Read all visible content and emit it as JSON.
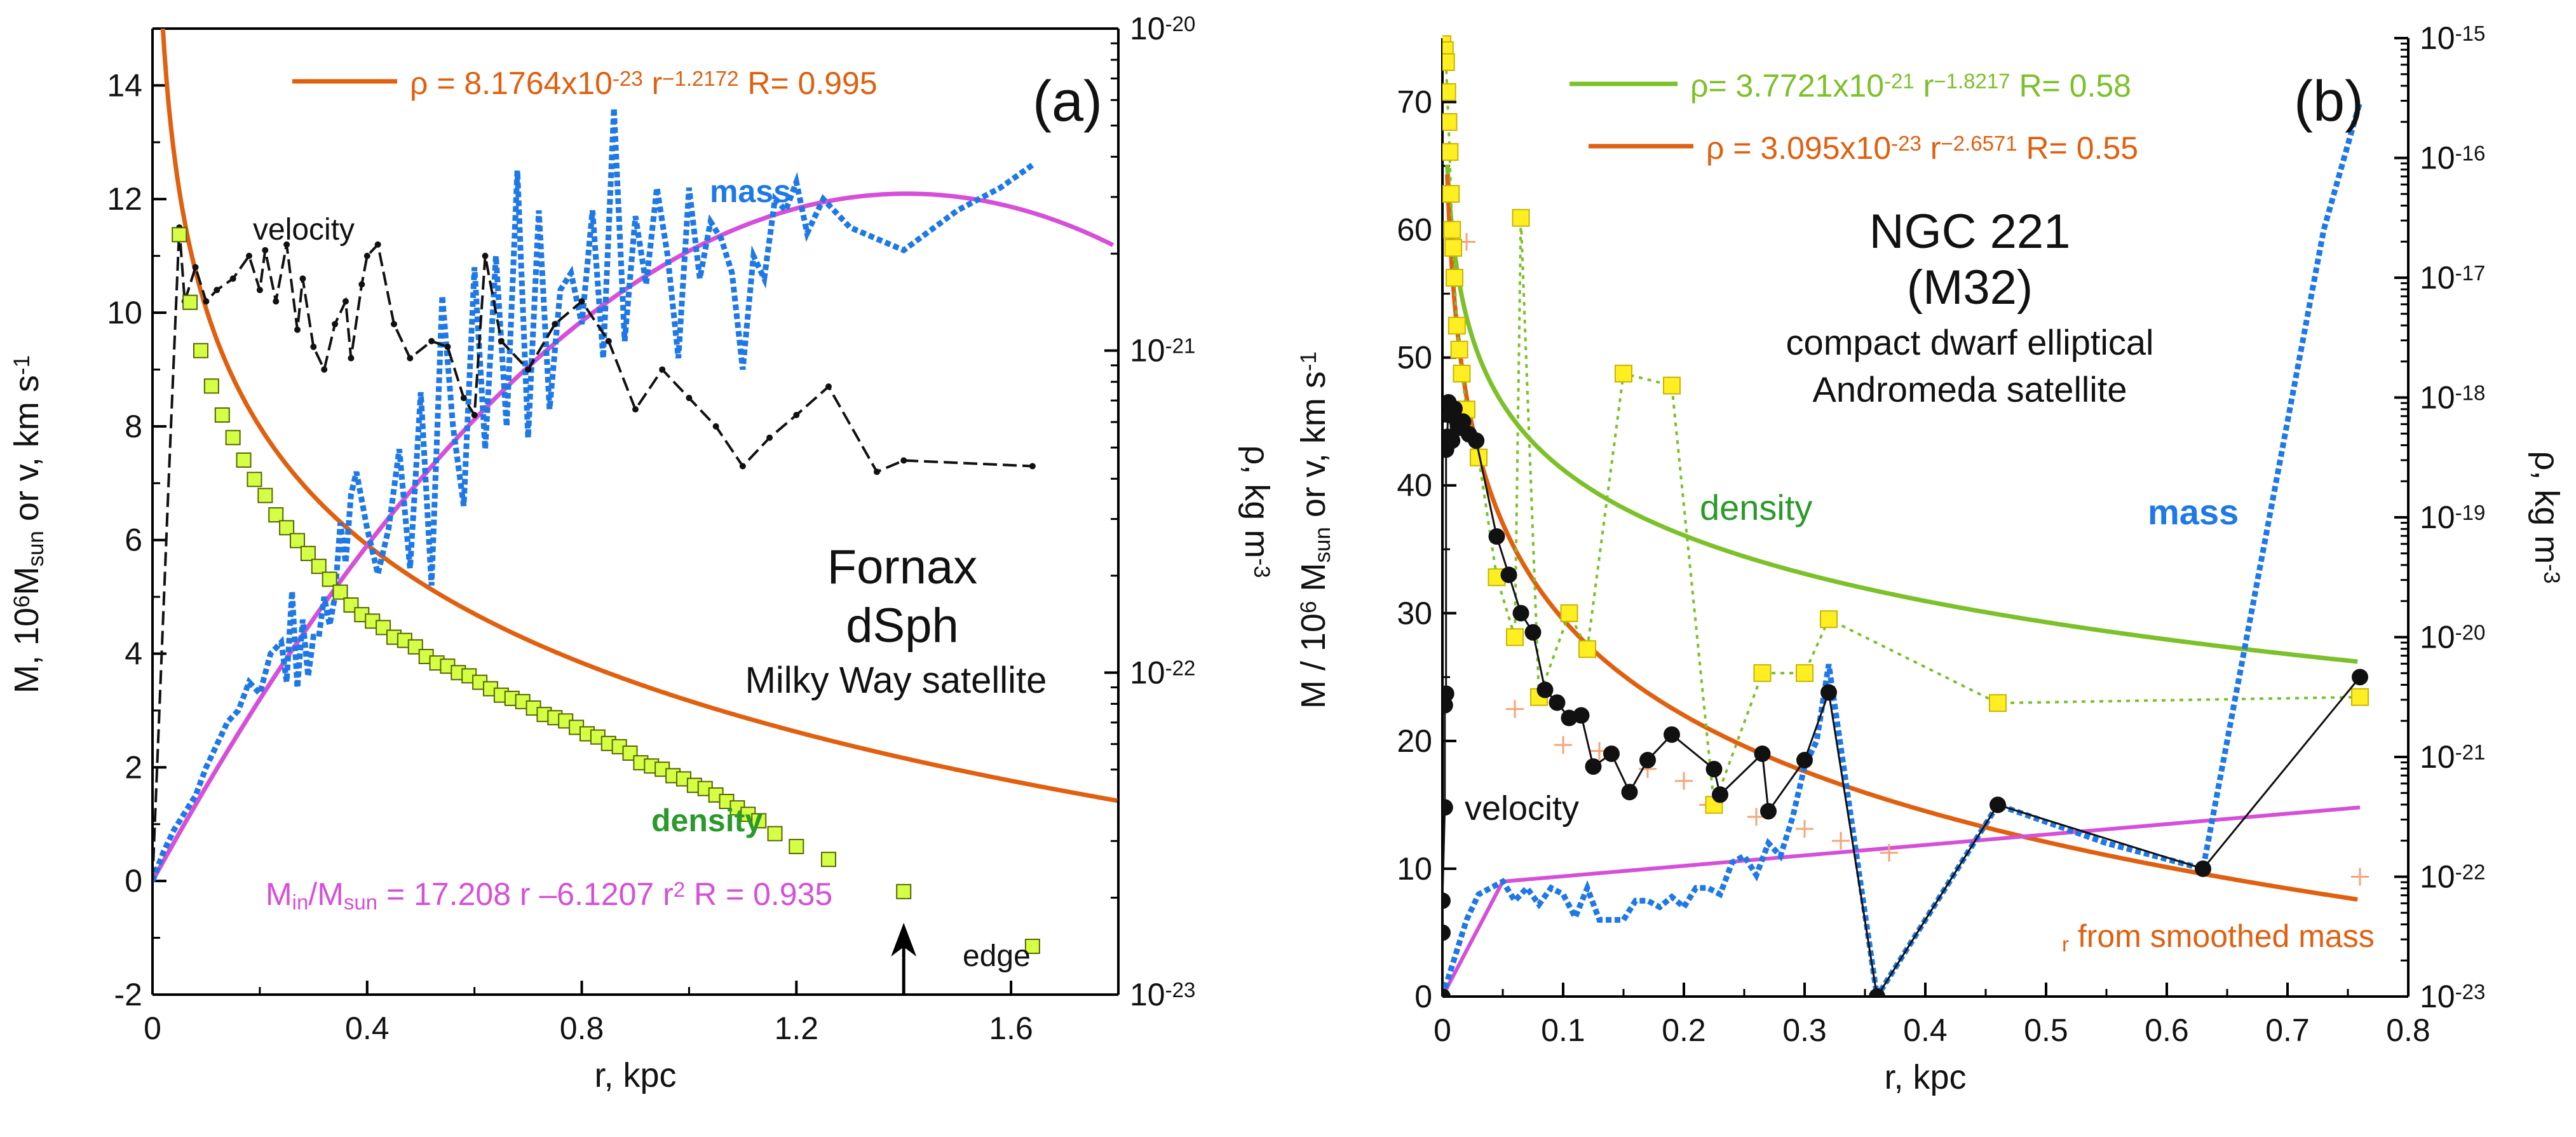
{
  "chart_data": [
    {
      "id": "a",
      "type": "line",
      "panel_label": "(a)",
      "xlabel": "r, kpc",
      "ylabel_parts": [
        "M, 10",
        "6",
        "M",
        "sun",
        "or",
        "v, km s",
        "-1"
      ],
      "y2label_parts": [
        "ρ, kg m",
        "-3"
      ],
      "xlim": [
        0,
        1.8
      ],
      "ylim": [
        -2,
        15
      ],
      "y2lim_log10": [
        -23,
        -20
      ],
      "xticks": [
        0,
        0.4,
        0.8,
        1.2,
        1.6
      ],
      "xtick_labels": [
        "0",
        "0.4",
        "0.8",
        "1.2",
        "1.6"
      ],
      "yticks": [
        -2,
        0,
        2,
        4,
        6,
        8,
        10,
        12,
        14
      ],
      "ytick_labels": [
        "-2",
        "0",
        "2",
        "4",
        "6",
        "8",
        "10",
        "12",
        "14"
      ],
      "y2ticks": [
        -23,
        -22,
        -21,
        -20
      ],
      "y2tick_labels": [
        "10",
        "10",
        "10",
        "10"
      ],
      "y2tick_exps": [
        "-23",
        "-22",
        "-21",
        "-20"
      ],
      "titles": [
        "Fornax",
        "dSph",
        "Milky Way satellite"
      ],
      "colors": {
        "density_fit": "#e06010",
        "density_pts": "#d4ff44",
        "mass": "#1e78e6",
        "mass_fit": "#d64fd8",
        "velocity": "#111111",
        "density_text": "#2a9a2a"
      },
      "annotations": {
        "rho_fit": {
          "pre": "ρ = 8.1764x10",
          "exp": "-23",
          "mid": " r",
          "exp2": "−1.2172",
          "post": "  R= 0.995"
        },
        "mass_fit": {
          "pre": "M",
          "sub": "in",
          "mid": "/M",
          "sub2": "sun",
          "post": " = 17.208 r –6.1207 r",
          "sup": "2",
          "tail": "   R = 0.935"
        },
        "mass_label": "mass",
        "velocity_label": "velocity",
        "density_label": "density",
        "edge_label": "edge",
        "edge_x": 1.4
      },
      "series": [
        {
          "name": "density fit",
          "kind": "fit",
          "formula": {
            "a": 8.1764e-23,
            "b": -1.2172
          }
        },
        {
          "name": "mass fit",
          "kind": "fit",
          "formula": {
            "c1": 17.208,
            "c2": -6.1207
          }
        },
        {
          "name": "mass",
          "style": "dotted",
          "x": [
            0,
            0.02,
            0.04,
            0.06,
            0.08,
            0.1,
            0.12,
            0.14,
            0.16,
            0.18,
            0.2,
            0.22,
            0.24,
            0.25,
            0.26,
            0.27,
            0.28,
            0.29,
            0.3,
            0.31,
            0.32,
            0.33,
            0.34,
            0.35,
            0.36,
            0.37,
            0.38,
            0.4,
            0.42,
            0.44,
            0.46,
            0.48,
            0.5,
            0.52,
            0.54,
            0.56,
            0.58,
            0.6,
            0.62,
            0.64,
            0.66,
            0.68,
            0.7,
            0.72,
            0.74,
            0.76,
            0.78,
            0.8,
            0.82,
            0.84,
            0.86,
            0.88,
            0.9,
            0.92,
            0.94,
            0.96,
            0.98,
            1.0,
            1.02,
            1.04,
            1.06,
            1.08,
            1.1,
            1.12,
            1.14,
            1.16,
            1.18,
            1.2,
            1.22,
            1.25,
            1.3,
            1.4,
            1.5,
            1.58,
            1.64
          ],
          "y": [
            0,
            0.5,
            0.9,
            1.2,
            1.5,
            2.0,
            2.4,
            2.8,
            3.0,
            3.5,
            3.3,
            4.0,
            4.2,
            3.5,
            5.1,
            3.4,
            4.6,
            3.6,
            4.3,
            4.3,
            5.0,
            4.5,
            5.0,
            6.3,
            5.6,
            6.8,
            7.2,
            6.2,
            5.4,
            6.2,
            7.6,
            5.5,
            8.6,
            5.2,
            10.3,
            8.0,
            6.6,
            10.8,
            7.6,
            11.0,
            8.0,
            12.5,
            7.8,
            11.8,
            8.3,
            10.4,
            10.7,
            9.8,
            11.8,
            9.2,
            13.6,
            9.5,
            11.7,
            10.5,
            12.2,
            11.0,
            9.2,
            12.2,
            10.6,
            11.6,
            11.3,
            10.7,
            9.0,
            11.0,
            10.6,
            12.0,
            11.8,
            12.3,
            11.4,
            12.0,
            11.5,
            11.1,
            11.8,
            12.2,
            12.6
          ]
        },
        {
          "name": "velocity",
          "style": "dashed",
          "x": [
            0,
            0.03,
            0.05,
            0.06,
            0.08,
            0.1,
            0.12,
            0.15,
            0.18,
            0.2,
            0.21,
            0.23,
            0.25,
            0.27,
            0.28,
            0.3,
            0.32,
            0.34,
            0.36,
            0.37,
            0.39,
            0.4,
            0.42,
            0.45,
            0.48,
            0.52,
            0.55,
            0.58,
            0.6,
            0.62,
            0.65,
            0.7,
            0.75,
            0.8,
            0.85,
            0.9,
            0.95,
            1.0,
            1.05,
            1.1,
            1.15,
            1.2,
            1.26,
            1.35,
            1.4,
            1.64
          ],
          "y": [
            0,
            7.0,
            11.5,
            10.2,
            10.8,
            10.2,
            10.4,
            10.6,
            11.0,
            10.4,
            11.1,
            10.2,
            11.2,
            9.7,
            10.6,
            9.4,
            9.0,
            9.8,
            10.2,
            9.2,
            10.5,
            11.0,
            11.2,
            9.8,
            9.2,
            9.5,
            9.4,
            8.5,
            8.2,
            11.0,
            9.5,
            9.0,
            9.8,
            10.2,
            9.5,
            8.3,
            9.0,
            8.5,
            8.0,
            7.3,
            7.8,
            8.2,
            8.7,
            7.2,
            7.4,
            7.3
          ]
        },
        {
          "name": "density points",
          "style": "squares",
          "x": [
            0.05,
            0.07,
            0.09,
            0.11,
            0.13,
            0.15,
            0.17,
            0.19,
            0.21,
            0.23,
            0.25,
            0.27,
            0.29,
            0.31,
            0.33,
            0.35,
            0.37,
            0.39,
            0.41,
            0.43,
            0.45,
            0.47,
            0.49,
            0.51,
            0.53,
            0.55,
            0.57,
            0.59,
            0.61,
            0.63,
            0.65,
            0.67,
            0.69,
            0.71,
            0.73,
            0.75,
            0.77,
            0.79,
            0.81,
            0.83,
            0.85,
            0.87,
            0.89,
            0.91,
            0.93,
            0.95,
            0.97,
            0.99,
            1.01,
            1.03,
            1.05,
            1.07,
            1.09,
            1.11,
            1.13,
            1.16,
            1.2,
            1.26,
            1.4,
            1.64
          ],
          "y_log10": [
            -20.64,
            -20.85,
            -21.0,
            -21.11,
            -21.2,
            -21.27,
            -21.34,
            -21.4,
            -21.45,
            -21.51,
            -21.55,
            -21.59,
            -21.63,
            -21.67,
            -21.71,
            -21.75,
            -21.79,
            -21.82,
            -21.84,
            -21.86,
            -21.89,
            -21.9,
            -21.92,
            -21.95,
            -21.97,
            -21.98,
            -22.0,
            -22.01,
            -22.03,
            -22.05,
            -22.07,
            -22.08,
            -22.09,
            -22.11,
            -22.13,
            -22.14,
            -22.15,
            -22.17,
            -22.19,
            -22.2,
            -22.22,
            -22.23,
            -22.25,
            -22.28,
            -22.29,
            -22.3,
            -22.32,
            -22.33,
            -22.35,
            -22.36,
            -22.38,
            -22.4,
            -22.42,
            -22.44,
            -22.46,
            -22.5,
            -22.54,
            -22.58,
            -22.68,
            -22.85
          ]
        }
      ]
    },
    {
      "id": "b",
      "type": "line",
      "panel_label": "(b)",
      "xlabel": "r, kpc",
      "ylabel_parts": [
        "M / 10",
        "6",
        " M",
        "sun",
        "or",
        "v, km s",
        "-1"
      ],
      "y2label_parts": [
        "ρ, kg m",
        "-3"
      ],
      "xlim": [
        0,
        0.8
      ],
      "ylim": [
        0,
        75
      ],
      "y2lim_log10": [
        -23,
        -15
      ],
      "xticks": [
        0,
        0.1,
        0.2,
        0.3,
        0.4,
        0.5,
        0.6,
        0.7,
        0.8
      ],
      "xtick_labels": [
        "0",
        "0.1",
        "0.2",
        "0.3",
        "0.4",
        "0.5",
        "0.6",
        "0.7",
        "0.8"
      ],
      "yticks": [
        0,
        10,
        20,
        30,
        40,
        50,
        60,
        70
      ],
      "ytick_labels": [
        "0",
        "10",
        "20",
        "30",
        "40",
        "50",
        "60",
        "70"
      ],
      "y2ticks": [
        -23,
        -22,
        -21,
        -20,
        -19,
        -18,
        -17,
        -16,
        -15
      ],
      "y2tick_labels": [
        "10",
        "10",
        "10",
        "10",
        "10",
        "10",
        "10",
        "10",
        "10"
      ],
      "y2tick_exps": [
        "-23",
        "-22",
        "-21",
        "-20",
        "-19",
        "-18",
        "-17",
        "-16",
        "-15"
      ],
      "titles": [
        "NGC 221",
        "(M32)",
        "compact dwarf elliptical",
        "Andromeda satellite"
      ],
      "colors": {
        "density_fit_green": "#7cc02a",
        "density_fit_orange": "#e06010",
        "density_pts": "#ffee22",
        "mass": "#1e78e6",
        "mass_fit": "#d64fd8",
        "velocity": "#111111",
        "plus": "#f4a57a",
        "density_text": "#2a9a2a"
      },
      "annotations": {
        "rho_fit_green": {
          "pre": "ρ= 3.7721x10",
          "exp": "-21",
          "mid": " r",
          "exp2": "−1.8217",
          "post": "   R= 0.58"
        },
        "rho_fit_orange": {
          "pre": "ρ = 3.095x10",
          "exp": "-23",
          "mid": " r",
          "exp2": "−2.6571",
          "post": "  R= 0.55"
        },
        "mass_label": "mass",
        "velocity_label": "velocity",
        "density_label": "density",
        "smoothed_label": "from smoothed mass",
        "smoothed_sub": "r"
      },
      "series": [
        {
          "name": "density fit green",
          "kind": "fit",
          "formula": {
            "a": 3.7721e-21,
            "b": -1.8217
          }
        },
        {
          "name": "density fit orange",
          "kind": "fit",
          "formula": {
            "a": 3.095e-23,
            "b": -2.6571
          }
        },
        {
          "name": "mass fit",
          "kind": "line",
          "x": [
            0,
            0.05,
            0.76
          ],
          "y": [
            0,
            9.0,
            14.8
          ]
        },
        {
          "name": "mass",
          "style": "dotted",
          "x": [
            0,
            0.01,
            0.02,
            0.03,
            0.04,
            0.05,
            0.06,
            0.07,
            0.08,
            0.09,
            0.1,
            0.11,
            0.12,
            0.13,
            0.14,
            0.15,
            0.16,
            0.17,
            0.18,
            0.19,
            0.2,
            0.21,
            0.22,
            0.23,
            0.24,
            0.25,
            0.26,
            0.27,
            0.28,
            0.29,
            0.3,
            0.31,
            0.32,
            0.36,
            0.4,
            0.46,
            0.55,
            0.63,
            0.66,
            0.7,
            0.73,
            0.76
          ],
          "y": [
            0,
            3.0,
            6.0,
            8.0,
            8.5,
            9.0,
            7.5,
            8.5,
            7.2,
            8.5,
            8.0,
            6.2,
            8.5,
            6.0,
            6.0,
            6.0,
            7.5,
            7.5,
            7.0,
            7.8,
            7.0,
            8.5,
            8.5,
            8.0,
            10.5,
            11.0,
            9.5,
            12.0,
            11.0,
            14.0,
            18.0,
            20.0,
            26.0,
            0,
            6.0,
            15.0,
            12.0,
            10.0,
            25.0,
            45.0,
            60.0,
            70.0
          ]
        },
        {
          "name": "velocity",
          "style": "markers-line",
          "x": [
            0.0,
            0.0,
            0.0,
            0.002,
            0.002,
            0.003,
            0.003,
            0.004,
            0.005,
            0.006,
            0.008,
            0.01,
            0.013,
            0.017,
            0.022,
            0.028,
            0.045,
            0.055,
            0.065,
            0.075,
            0.085,
            0.095,
            0.105,
            0.115,
            0.125,
            0.14,
            0.155,
            0.17,
            0.19,
            0.225,
            0.23,
            0.265,
            0.27,
            0.3,
            0.32,
            0.36,
            0.46,
            0.63,
            0.76
          ],
          "y": [
            0,
            5.0,
            7.5,
            14.8,
            22.8,
            23.7,
            42.8,
            43.8,
            46.5,
            45.5,
            43.5,
            46.0,
            44.5,
            45.0,
            44.0,
            43.5,
            36.0,
            33.0,
            30.0,
            28.5,
            24.0,
            23.0,
            21.8,
            22.0,
            18.0,
            19.0,
            16.0,
            18.5,
            20.5,
            17.8,
            15.8,
            19.0,
            14.5,
            18.5,
            23.8,
            0,
            15.0,
            10.0,
            25.0
          ]
        },
        {
          "name": "density points",
          "style": "squares",
          "x": [
            0.0,
            0.002,
            0.003,
            0.004,
            0.005,
            0.006,
            0.007,
            0.008,
            0.009,
            0.01,
            0.012,
            0.014,
            0.016,
            0.02,
            0.03,
            0.045,
            0.06,
            0.065,
            0.08,
            0.105,
            0.12,
            0.15,
            0.19,
            0.225,
            0.265,
            0.3,
            0.32,
            0.46,
            0.76
          ],
          "y_log10": [
            -15.05,
            -15.1,
            -15.2,
            -15.45,
            -15.7,
            -15.95,
            -16.3,
            -16.6,
            -16.75,
            -17.0,
            -17.4,
            -17.6,
            -17.8,
            -18.1,
            -18.5,
            -19.5,
            -20.0,
            -16.5,
            -20.5,
            -19.8,
            -20.1,
            -17.8,
            -17.9,
            -21.4,
            -20.3,
            -20.3,
            -19.85,
            -20.55,
            -20.5
          ]
        },
        {
          "name": "plus markers",
          "style": "plus",
          "x": [
            0.02,
            0.06,
            0.1,
            0.13,
            0.17,
            0.2,
            0.22,
            0.26,
            0.3,
            0.33,
            0.37,
            0.76
          ],
          "y_log10": [
            -16.7,
            -20.6,
            -20.9,
            -20.95,
            -21.1,
            -21.2,
            -21.4,
            -21.5,
            -21.6,
            -21.7,
            -21.8,
            -22.0
          ]
        }
      ]
    }
  ]
}
